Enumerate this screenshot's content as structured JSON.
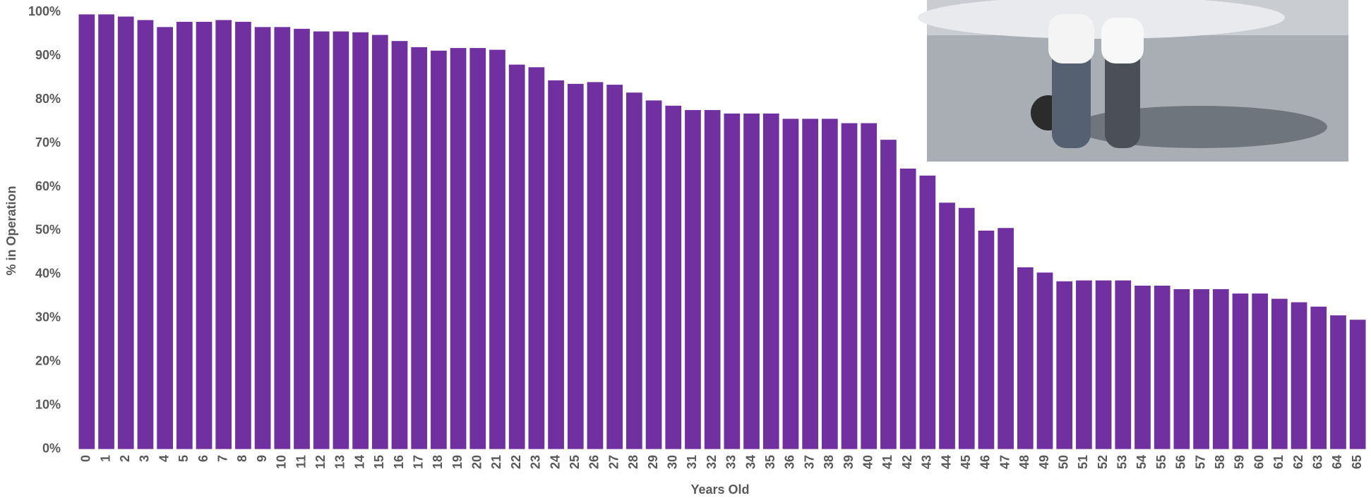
{
  "chart_data": {
    "type": "bar",
    "x_label": "Years Old",
    "y_label": "% in Operation",
    "color": "#7030a0",
    "categories": [
      "0",
      "1",
      "2",
      "3",
      "4",
      "5",
      "6",
      "7",
      "8",
      "9",
      "10",
      "11",
      "12",
      "13",
      "14",
      "15",
      "16",
      "17",
      "18",
      "19",
      "20",
      "21",
      "22",
      "23",
      "24",
      "25",
      "26",
      "27",
      "28",
      "29",
      "30",
      "31",
      "32",
      "33",
      "34",
      "35",
      "36",
      "37",
      "38",
      "39",
      "40",
      "41",
      "42",
      "43",
      "44",
      "45",
      "46",
      "47",
      "48",
      "49",
      "50",
      "51",
      "52",
      "53",
      "54",
      "55",
      "56",
      "57",
      "58",
      "59",
      "60",
      "61",
      "62",
      "63",
      "64",
      "65"
    ],
    "values": [
      99.5,
      99.5,
      99,
      98.2,
      96.6,
      97.8,
      97.8,
      98.2,
      97.8,
      96.6,
      96.6,
      96.2,
      95.6,
      95.6,
      95.4,
      94.8,
      93.4,
      92,
      91.2,
      91.8,
      91.8,
      91.4,
      88,
      87.4,
      84.4,
      83.6,
      84,
      83.4,
      81.6,
      79.8,
      78.6,
      77.6,
      77.6,
      76.8,
      76.8,
      76.8,
      75.6,
      75.6,
      75.6,
      74.6,
      74.6,
      70.8,
      64.2,
      62.6,
      56.4,
      55.2,
      50,
      50.6,
      41.6,
      40.4,
      38.4,
      38.6,
      38.6,
      38.6,
      37.4,
      37.4,
      36.6,
      36.6,
      36.6,
      35.6,
      35.6,
      34.4,
      33.6,
      32.6,
      30.6,
      29.6
    ],
    "ylim": [
      0,
      100
    ],
    "yticks": [
      {
        "value": 0,
        "label": "0%"
      },
      {
        "value": 10,
        "label": "10%"
      },
      {
        "value": 20,
        "label": "20%"
      },
      {
        "value": 30,
        "label": "30%"
      },
      {
        "value": 40,
        "label": "40%"
      },
      {
        "value": 50,
        "label": "50%"
      },
      {
        "value": 60,
        "label": "60%"
      },
      {
        "value": 70,
        "label": "70%"
      },
      {
        "value": 80,
        "label": "80%"
      },
      {
        "value": 90,
        "label": "90%"
      },
      {
        "value": 100,
        "label": "100%"
      }
    ],
    "grid": false
  }
}
